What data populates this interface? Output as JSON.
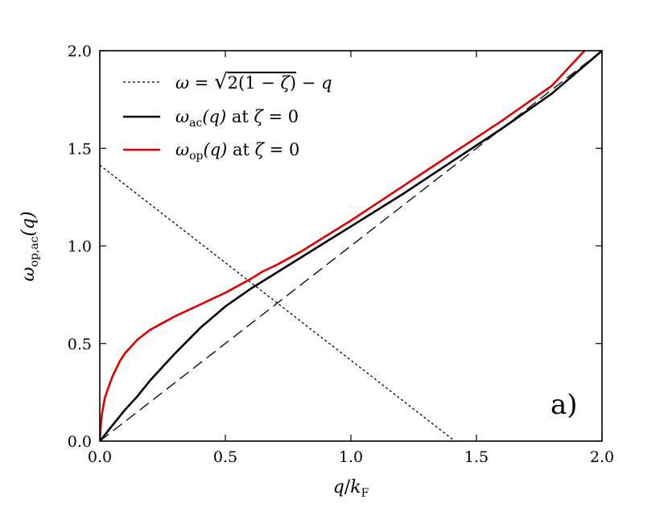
{
  "chart_data": {
    "type": "line",
    "xlabel": "q/k_F",
    "ylabel": "ω_op,ac(q)",
    "xlim": [
      0.0,
      2.0
    ],
    "ylim": [
      0.0,
      2.0
    ],
    "xticks": [
      "0.0",
      "0.5",
      "1.0",
      "1.5",
      "2.0"
    ],
    "yticks": [
      "0.0",
      "0.5",
      "1.0",
      "1.5",
      "2.0"
    ],
    "grid": false,
    "legend_position": "top-left",
    "annotation": "a)",
    "series": [
      {
        "name": "ω = √(2(1 − ζ)) − q",
        "style": "dotted",
        "color": "#000000",
        "x": [
          0.0,
          1.4142
        ],
        "y": [
          1.4142,
          0.0
        ]
      },
      {
        "name": "ω_ac(q) at ζ = 0",
        "style": "solid",
        "color": "#000000",
        "x": [
          0.0,
          0.05,
          0.1,
          0.15,
          0.2,
          0.3,
          0.4,
          0.5,
          0.6,
          0.7,
          0.8,
          0.9,
          1.0,
          1.2,
          1.4,
          1.6,
          1.8,
          2.0
        ],
        "y": [
          0.0,
          0.08,
          0.16,
          0.23,
          0.31,
          0.45,
          0.58,
          0.69,
          0.78,
          0.86,
          0.94,
          1.02,
          1.1,
          1.26,
          1.43,
          1.6,
          1.78,
          2.0
        ]
      },
      {
        "name": "ω_op(q) at ζ = 0",
        "style": "solid",
        "color": "#e00000",
        "x": [
          0.0,
          0.005,
          0.01,
          0.02,
          0.03,
          0.05,
          0.08,
          0.1,
          0.15,
          0.2,
          0.3,
          0.4,
          0.5,
          0.6,
          0.65,
          0.7,
          0.8,
          0.9,
          1.0,
          1.2,
          1.4,
          1.6,
          1.8,
          1.93
        ],
        "y": [
          0.0,
          0.1,
          0.15,
          0.22,
          0.26,
          0.33,
          0.41,
          0.45,
          0.52,
          0.57,
          0.64,
          0.7,
          0.76,
          0.83,
          0.87,
          0.9,
          0.97,
          1.05,
          1.13,
          1.3,
          1.47,
          1.64,
          1.82,
          2.0
        ]
      },
      {
        "name": "",
        "style": "dashed",
        "color": "#000000",
        "x": [
          0.0,
          2.0
        ],
        "y": [
          0.0,
          2.0
        ]
      }
    ]
  }
}
